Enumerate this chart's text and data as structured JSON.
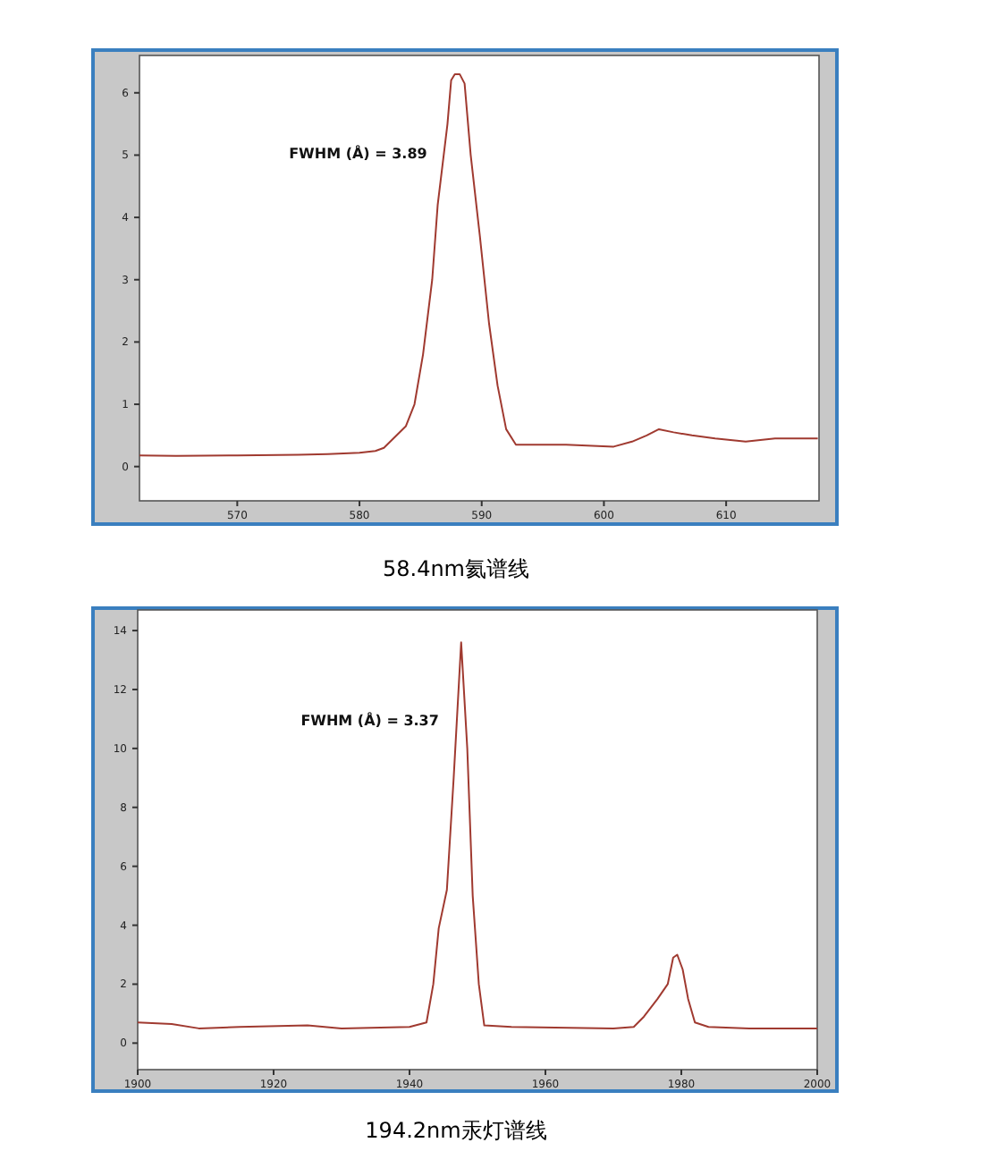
{
  "chart_data": [
    {
      "type": "line",
      "title": "58.4nm氦谱线",
      "annotations": [
        "FWHM (Å) = 3.89"
      ],
      "xlim": [
        562,
        617.6
      ],
      "ylim": [
        -0.55,
        6.6
      ],
      "xticks": [
        570,
        580,
        590,
        600,
        610
      ],
      "yticks": [
        0,
        1,
        2,
        3,
        4,
        5,
        6
      ],
      "series": [
        {
          "color": "#a03a30",
          "x": [
            562,
            565,
            570,
            575,
            577.4,
            580,
            581.3,
            582,
            583.8,
            584.5,
            585.2,
            585.95,
            586.4,
            587.2,
            587.5,
            587.8,
            588.2,
            588.6,
            589.1,
            589.85,
            590.6,
            591.3,
            592,
            592.8,
            594,
            596.9,
            600.8,
            602.3,
            603.5,
            604.5,
            605.7,
            607.2,
            609.1,
            611.6,
            614,
            617.5
          ],
          "values": [
            0.18,
            0.17,
            0.18,
            0.19,
            0.2,
            0.22,
            0.25,
            0.3,
            0.65,
            1.0,
            1.8,
            3.0,
            4.2,
            5.5,
            6.2,
            6.3,
            6.3,
            6.15,
            5.0,
            3.7,
            2.3,
            1.3,
            0.6,
            0.35,
            0.35,
            0.35,
            0.32,
            0.4,
            0.5,
            0.6,
            0.55,
            0.5,
            0.45,
            0.4,
            0.45,
            0.45
          ]
        }
      ]
    },
    {
      "type": "line",
      "title": "194.2nm汞灯谱线",
      "annotations": [
        "FWHM (Å) = 3.37"
      ],
      "xlim": [
        1900,
        2000
      ],
      "ylim": [
        -0.9,
        14.7
      ],
      "xticks": [
        1900,
        1920,
        1940,
        1960,
        1980,
        2000
      ],
      "yticks": [
        0,
        2,
        4,
        6,
        8,
        10,
        12,
        14
      ],
      "series": [
        {
          "color": "#a03a30",
          "x": [
            1900,
            1905,
            1909,
            1915,
            1925,
            1930,
            1940,
            1942.5,
            1943.5,
            1944.3,
            1945.5,
            1946.5,
            1947.6,
            1948.5,
            1949.3,
            1950.2,
            1951,
            1955,
            1970,
            1973,
            1974.5,
            1976.5,
            1978,
            1978.8,
            1979.4,
            1980.2,
            1981,
            1982,
            1984,
            1990,
            2000
          ],
          "values": [
            0.7,
            0.65,
            0.5,
            0.55,
            0.6,
            0.5,
            0.55,
            0.7,
            2.0,
            3.9,
            5.2,
            9,
            13.6,
            10,
            5,
            2,
            0.6,
            0.55,
            0.5,
            0.55,
            0.9,
            1.5,
            2.0,
            2.9,
            3.0,
            2.5,
            1.5,
            0.7,
            0.55,
            0.5,
            0.5
          ]
        }
      ]
    }
  ]
}
